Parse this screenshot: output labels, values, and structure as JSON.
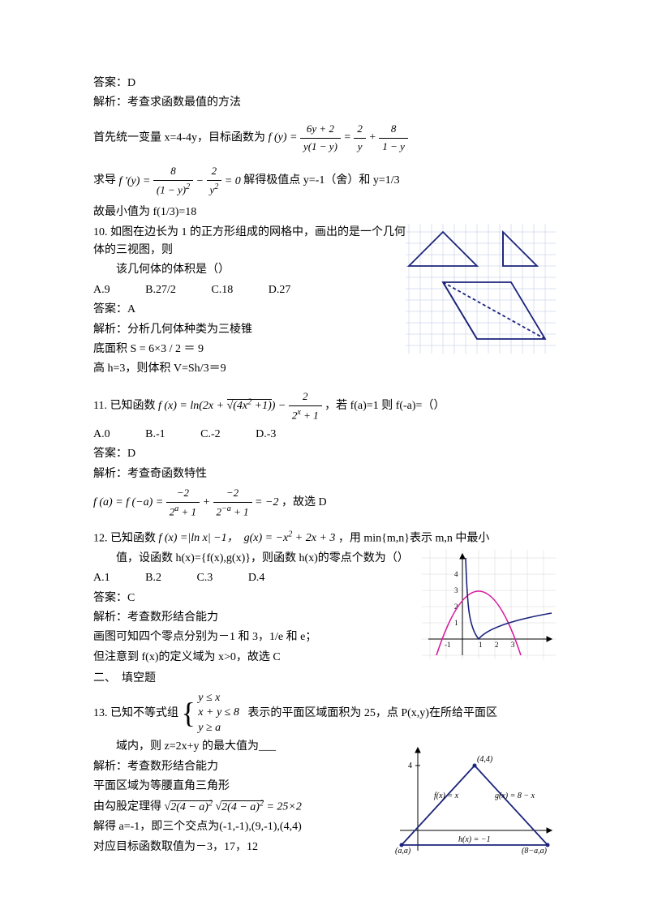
{
  "q9": {
    "answer_label": "答案：D",
    "analysis_label": "解析：考查求函数最值的方法",
    "unify_prefix": "首先统一变量 x=4-4y，目标函数为",
    "fprime_prefix": "求导",
    "fprime_suffix": "解得极值点 y=-1（舍）和 y=1/3",
    "min_value": "故最小值为 f(1/3)=18"
  },
  "q10": {
    "stem": "10. 如图在边长为 1 的正方形组成的网格中，画出的是一个几何体的三视图，则",
    "stem2": "该几何体的体积是（）",
    "optA": "A.9",
    "optB": "B.27/2",
    "optC": "C.18",
    "optD": "D.27",
    "answer": "答案：A",
    "analysis": "解析：分析几何体种类为三棱锥",
    "base": "底面积 S = 6×3 / 2 ＝ 9",
    "height": "高 h=3，则体积 V=Sh/3＝9",
    "fig": {
      "stroke": "#1c247c",
      "grid": "#bac5e6",
      "gridStep": 14,
      "cols": 13,
      "rows": 11
    }
  },
  "q11": {
    "stem_prefix": "11. 已知函数",
    "stem_suffix": "，若 f(a)=1 则 f(-a)=（）",
    "optA": "A.0",
    "optB": "B.-1",
    "optC": "C.-2",
    "optD": "D.-3",
    "answer": "答案：D",
    "analysis": "解析：考查奇函数特性",
    "conclusion": "，故选 D"
  },
  "q12": {
    "stem_prefix": "12. 已知函数",
    "stem_mid": "，用 min{m,n}表示 m,n 中最小",
    "stem2": "值，设函数 h(x)={f(x),g(x)}，则函数 h(x)的零点个数为（）",
    "optA": "A.1",
    "optB": "B.2",
    "optC": "C.3",
    "optD": "D.4",
    "answer": "答案：C",
    "analysis": "解析：考查数形结合能力",
    "draw": "画图可知四个零点分别为－1 和 3，1/e 和 e；",
    "domain": "但注意到 f(x)的定义域为 x>0，故选 C",
    "fig": {
      "stroke_axis": "#000000",
      "stroke_parabola": "#d81b9e",
      "stroke_abs": "#1c247c",
      "width": 160,
      "height": 130,
      "xrange": [
        -2,
        4
      ],
      "yrange": [
        -1.5,
        4.5
      ]
    }
  },
  "section2": "二、　填空题",
  "q13": {
    "stem_prefix": "13. 已知不等式组",
    "stem_suffix": "表示的平面区域面积为 25，点 P(x,y)在所给平面区",
    "stem2": "域内，则 z=2x+y 的最大值为___",
    "analysis": "解析：考查数形结合能力",
    "region": "平面区域为等腰直角三角形",
    "pythag_prefix": "由勾股定理得",
    "solve": "解得 a=-1，即三个交点为(-1,-1),(9,-1),(4,4)",
    "values": "对应目标函数取值为－3，17，12",
    "fig": {
      "stroke": "#1c247c",
      "labels": {
        "top": "(4,4)",
        "f": "f(x) = x",
        "g": "g(x) = 8 − x",
        "h": "h(x) = −1",
        "left": "(a,a)",
        "right": "(8−a,a)",
        "ytick": "4"
      }
    }
  }
}
